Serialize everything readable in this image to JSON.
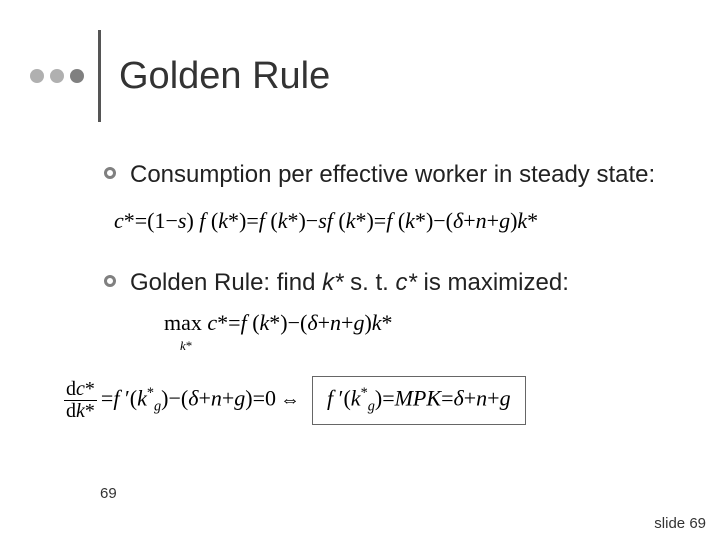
{
  "slide": {
    "title": "Golden Rule",
    "dots": {
      "colors": [
        "#b0b0b0",
        "#b0b0b0",
        "#808080"
      ]
    },
    "vbar_color": "#555555",
    "title_fontsize": 38,
    "body_fontsize": 24,
    "equation_fontsize": 22,
    "background_color": "#ffffff"
  },
  "bullets": [
    {
      "text": "Consumption per effective worker in steady state:"
    },
    {
      "text_prefix": "Golden Rule: find ",
      "kvar": "k*",
      "mid": " s. t. ",
      "cvar": "c*",
      "suffix": " is maximized:"
    }
  ],
  "equations": {
    "eq1": "c*=(1−s) f (k*)=f (k*)−sf (k*)=f (k*)−(δ+n+g)k*",
    "eq2_main": "max c*=f (k*)−(δ+n+g)k*",
    "eq2_sub": "k*",
    "eq3_frac_num": "dc*",
    "eq3_frac_den": "dk*",
    "eq3_mid": "=f ′(k*g)−(δ+n+g)=0",
    "eq3_boxed": "f ′(k*g)=MPK=δ+n+g",
    "box_border_color": "#666666"
  },
  "footer": {
    "small_num": "69",
    "slide_label": "slide 69"
  }
}
